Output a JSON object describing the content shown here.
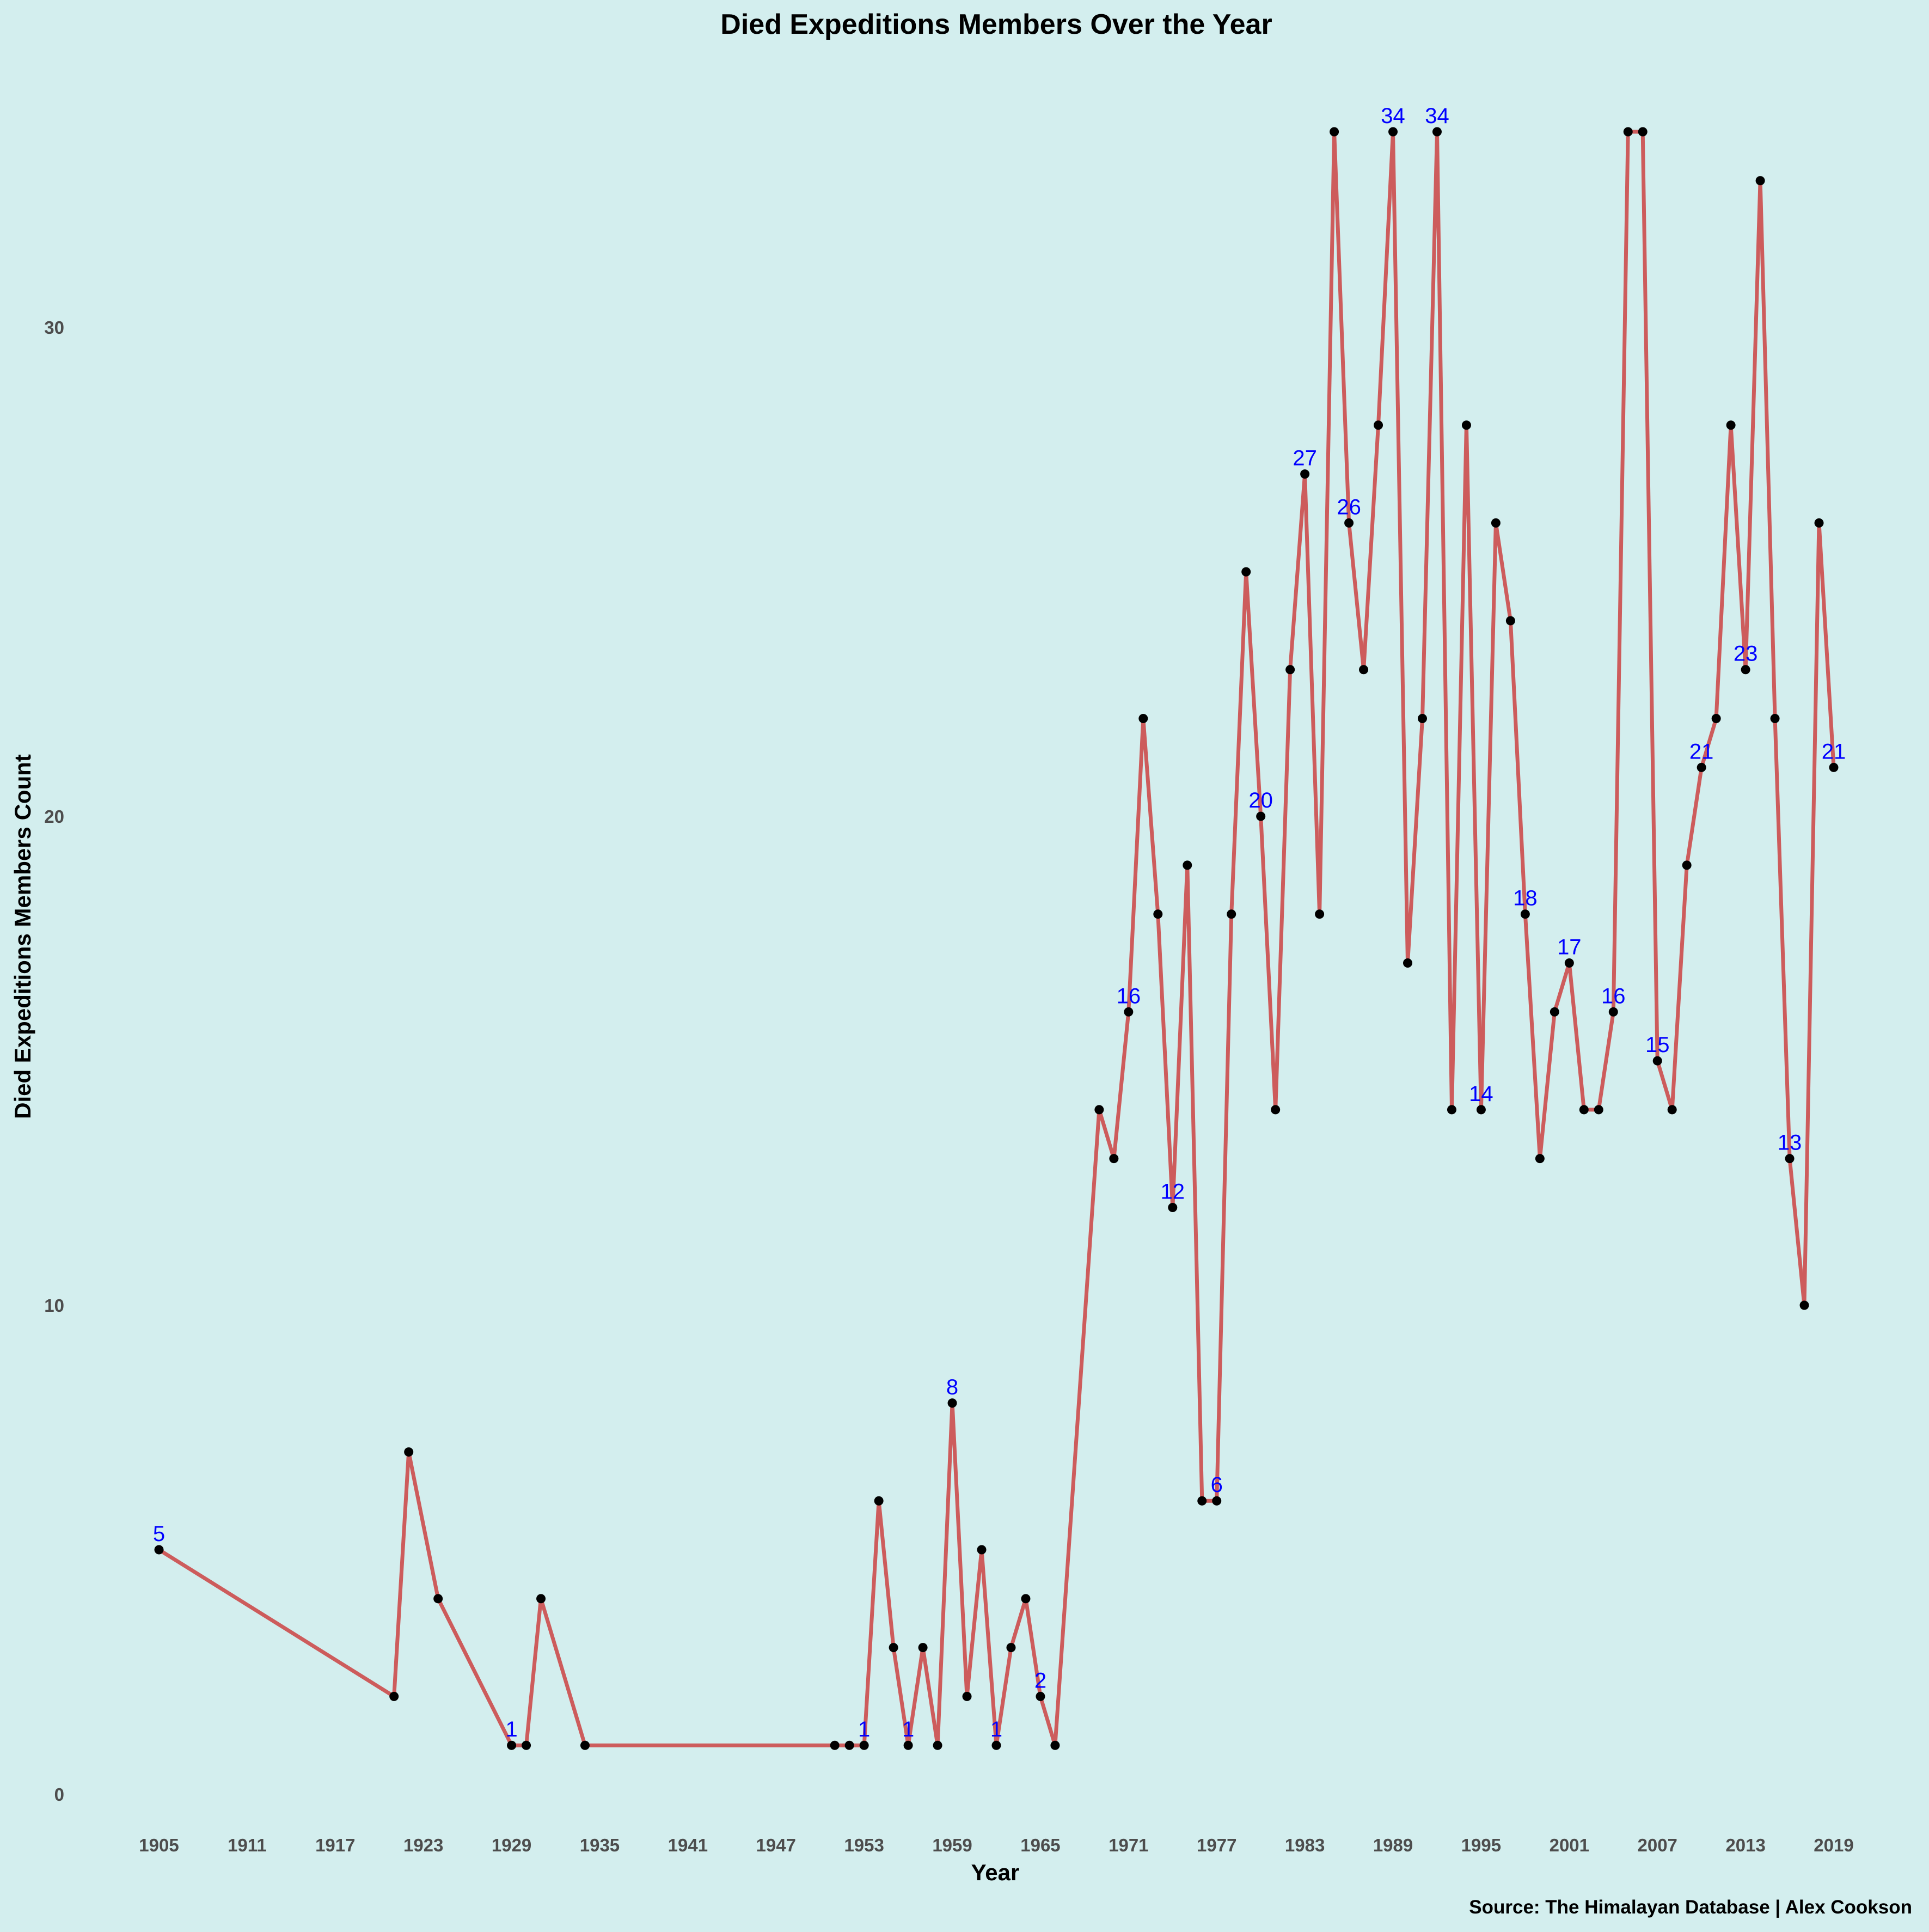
{
  "chart_data": {
    "type": "line",
    "title": "Died Expeditions Members Over the Year",
    "xlabel": "Year",
    "ylabel": "Died Expeditions Members Count",
    "caption": "Source: The Himalayan Database | Alex Cookson",
    "xlim": [
      1905,
      2019
    ],
    "ylim": [
      0,
      34
    ],
    "x_ticks": [
      1905,
      1911,
      1917,
      1923,
      1929,
      1935,
      1941,
      1947,
      1953,
      1959,
      1965,
      1971,
      1977,
      1983,
      1989,
      1995,
      2001,
      2007,
      2013,
      2019
    ],
    "y_ticks": [
      0,
      10,
      20,
      30
    ],
    "grid": false,
    "line_color": "#cd5c5c",
    "point_color": "#000000",
    "label_color": "#0000ff",
    "background": "#d3eeee",
    "series": [
      {
        "x": [
          1905,
          1921,
          1922,
          1924,
          1929,
          1930,
          1931,
          1934,
          1951,
          1952,
          1953,
          1954,
          1955,
          1956,
          1957,
          1958,
          1959,
          1960,
          1961,
          1962,
          1963,
          1964,
          1965,
          1966,
          1969,
          1970,
          1971,
          1972,
          1973,
          1974,
          1975,
          1976,
          1977,
          1978,
          1979,
          1980,
          1981,
          1982,
          1983,
          1984,
          1985,
          1986,
          1987,
          1988,
          1989,
          1990,
          1991,
          1992,
          1993,
          1994,
          1995,
          1996,
          1997,
          1998,
          1999,
          2000,
          2001,
          2002,
          2003,
          2004,
          2005,
          2006,
          2007,
          2008,
          2009,
          2010,
          2011,
          2012,
          2013,
          2014,
          2015,
          2016,
          2017,
          2018,
          2019
        ],
        "y": [
          5,
          2,
          7,
          4,
          1,
          1,
          4,
          1,
          1,
          1,
          1,
          6,
          3,
          1,
          3,
          1,
          8,
          2,
          5,
          1,
          3,
          4,
          2,
          1,
          14,
          13,
          16,
          22,
          18,
          12,
          19,
          6,
          6,
          18,
          25,
          20,
          14,
          23,
          27,
          18,
          34,
          26,
          23,
          28,
          34,
          17,
          22,
          34,
          14,
          28,
          14,
          26,
          24,
          18,
          13,
          16,
          17,
          14,
          14,
          16,
          34,
          34,
          15,
          14,
          19,
          21,
          22,
          28,
          23,
          33,
          22,
          13,
          10,
          26,
          21
        ]
      }
    ],
    "data_labels": [
      {
        "x": 1905,
        "y": 5,
        "text": "5"
      },
      {
        "x": 1929,
        "y": 1,
        "text": "1"
      },
      {
        "x": 1953,
        "y": 1,
        "text": "1"
      },
      {
        "x": 1956,
        "y": 1,
        "text": "1"
      },
      {
        "x": 1959,
        "y": 8,
        "text": "8"
      },
      {
        "x": 1962,
        "y": 1,
        "text": "1"
      },
      {
        "x": 1965,
        "y": 2,
        "text": "2"
      },
      {
        "x": 1971,
        "y": 16,
        "text": "16"
      },
      {
        "x": 1974,
        "y": 12,
        "text": "12"
      },
      {
        "x": 1977,
        "y": 6,
        "text": "6"
      },
      {
        "x": 1980,
        "y": 20,
        "text": "20"
      },
      {
        "x": 1983,
        "y": 27,
        "text": "27"
      },
      {
        "x": 1986,
        "y": 26,
        "text": "26"
      },
      {
        "x": 1989,
        "y": 34,
        "text": "34"
      },
      {
        "x": 1992,
        "y": 34,
        "text": "34"
      },
      {
        "x": 1995,
        "y": 14,
        "text": "14"
      },
      {
        "x": 1998,
        "y": 18,
        "text": "18"
      },
      {
        "x": 2001,
        "y": 17,
        "text": "17"
      },
      {
        "x": 2004,
        "y": 16,
        "text": "16"
      },
      {
        "x": 2007,
        "y": 15,
        "text": "15"
      },
      {
        "x": 2010,
        "y": 21,
        "text": "21"
      },
      {
        "x": 2013,
        "y": 23,
        "text": "23"
      },
      {
        "x": 2016,
        "y": 13,
        "text": "13"
      },
      {
        "x": 2019,
        "y": 21,
        "text": "21"
      }
    ]
  }
}
